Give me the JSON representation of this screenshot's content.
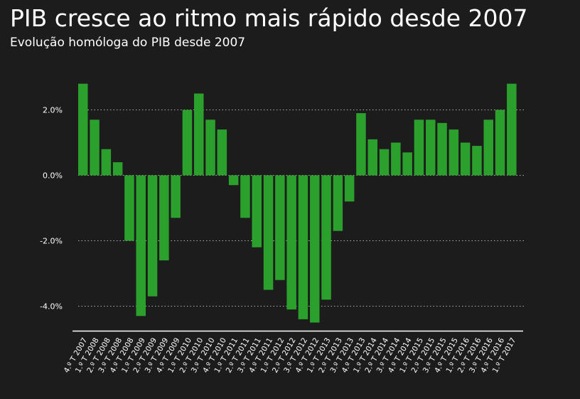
{
  "title": "PIB cresce ao ritmo mais rápido desde 2007",
  "subtitle": "Evolução homóloga do PIB desde 2007",
  "colors": {
    "bar": "#2ca02c",
    "background": "#1c1c1c",
    "text": "#ffffff",
    "grid": "#b0b0b0"
  },
  "chart_data": {
    "type": "bar",
    "title": "",
    "xlabel": "",
    "ylabel": "",
    "ylim": [
      -4.7,
      2.9
    ],
    "yticks": [
      -4.0,
      -2.0,
      0.0,
      2.0
    ],
    "ytick_labels": [
      "-4.0%",
      "-2.0%",
      "0.0%",
      "2.0%"
    ],
    "grid": "horizontal dotted",
    "categories": [
      "4.º T 2007",
      "1.º T 2008",
      "2.º T 2008",
      "3.º T 2008",
      "4.º T 2008",
      "1.º T 2009",
      "2.º T 2009",
      "3.º T 2009",
      "4.º T 2009",
      "1.º T 2010",
      "2.º T 2010",
      "3.º T 2010",
      "4.º T 2010",
      "1.º T 2011",
      "2.º T 2011",
      "3.º T 2011",
      "4.º T 2011",
      "1.º T 2012",
      "2.º T 2012",
      "3.º T 2012",
      "4.º T 2012",
      "1.º T 2013",
      "2.º T 2013",
      "3.º T 2013",
      "4.º T 2013",
      "1.º T 2014",
      "2.º T 2014",
      "3.º T 2014",
      "4.º T 2014",
      "1.º T 2015",
      "2.º T 2015",
      "3.º T 2015",
      "4.º T 2015",
      "1.º T 2016",
      "2.º T 2016",
      "3.º T 2016",
      "4.º T 2016",
      "1.º T 2017"
    ],
    "values": [
      2.8,
      1.7,
      0.8,
      0.4,
      -2.0,
      -4.3,
      -3.7,
      -2.6,
      -1.3,
      2.0,
      2.5,
      1.7,
      1.4,
      -0.3,
      -1.3,
      -2.2,
      -3.5,
      -3.2,
      -4.1,
      -4.4,
      -4.5,
      -3.8,
      -1.7,
      -0.8,
      1.9,
      1.1,
      0.8,
      1.0,
      0.7,
      1.7,
      1.7,
      1.6,
      1.4,
      1.0,
      0.9,
      1.7,
      2.0,
      2.8
    ]
  }
}
